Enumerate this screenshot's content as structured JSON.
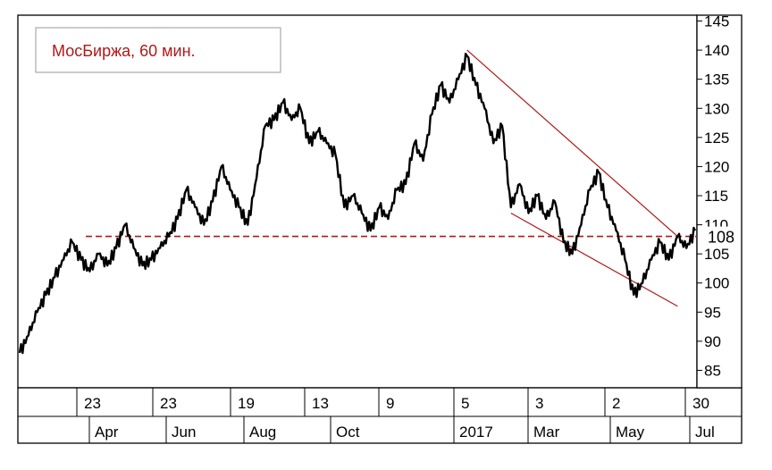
{
  "chart_data": {
    "type": "line",
    "title": "МосБиржа, 60 мин.",
    "y_ticks": [
      85,
      90,
      95,
      100,
      105,
      110,
      115,
      120,
      125,
      130,
      135,
      140,
      145
    ],
    "ylim": [
      82,
      146
    ],
    "x_tick_labels_top": [
      "23",
      "23",
      "19",
      "13",
      "9",
      "5",
      "3",
      "2",
      "30"
    ],
    "x_tick_labels_bottom": [
      "Apr",
      "Jun",
      "Aug",
      "Oct",
      "2017",
      "Mar",
      "May",
      "Jul"
    ],
    "series": [
      {
        "values": [
          {
            "x": 0,
            "y": 88
          },
          {
            "x": 2,
            "y": 91
          },
          {
            "x": 4,
            "y": 95
          },
          {
            "x": 6,
            "y": 98
          },
          {
            "x": 8,
            "y": 101
          },
          {
            "x": 10,
            "y": 104
          },
          {
            "x": 12,
            "y": 107
          },
          {
            "x": 14,
            "y": 104
          },
          {
            "x": 16,
            "y": 102
          },
          {
            "x": 18,
            "y": 105
          },
          {
            "x": 20,
            "y": 103
          },
          {
            "x": 22,
            "y": 106
          },
          {
            "x": 24,
            "y": 110
          },
          {
            "x": 26,
            "y": 106
          },
          {
            "x": 28,
            "y": 103
          },
          {
            "x": 30,
            "y": 104
          },
          {
            "x": 32,
            "y": 106
          },
          {
            "x": 34,
            "y": 108
          },
          {
            "x": 36,
            "y": 111
          },
          {
            "x": 38,
            "y": 116
          },
          {
            "x": 40,
            "y": 113
          },
          {
            "x": 42,
            "y": 110
          },
          {
            "x": 44,
            "y": 114
          },
          {
            "x": 46,
            "y": 120
          },
          {
            "x": 48,
            "y": 116
          },
          {
            "x": 50,
            "y": 113
          },
          {
            "x": 52,
            "y": 110
          },
          {
            "x": 54,
            "y": 118
          },
          {
            "x": 56,
            "y": 127
          },
          {
            "x": 58,
            "y": 128
          },
          {
            "x": 60,
            "y": 131
          },
          {
            "x": 62,
            "y": 128
          },
          {
            "x": 64,
            "y": 130
          },
          {
            "x": 66,
            "y": 124
          },
          {
            "x": 68,
            "y": 126
          },
          {
            "x": 70,
            "y": 124
          },
          {
            "x": 72,
            "y": 122
          },
          {
            "x": 74,
            "y": 113
          },
          {
            "x": 76,
            "y": 115
          },
          {
            "x": 78,
            "y": 112
          },
          {
            "x": 80,
            "y": 109
          },
          {
            "x": 82,
            "y": 113
          },
          {
            "x": 84,
            "y": 111
          },
          {
            "x": 86,
            "y": 116
          },
          {
            "x": 88,
            "y": 117
          },
          {
            "x": 90,
            "y": 124
          },
          {
            "x": 92,
            "y": 121
          },
          {
            "x": 94,
            "y": 129
          },
          {
            "x": 96,
            "y": 134
          },
          {
            "x": 98,
            "y": 131
          },
          {
            "x": 100,
            "y": 135
          },
          {
            "x": 102,
            "y": 139
          },
          {
            "x": 104,
            "y": 134
          },
          {
            "x": 106,
            "y": 130
          },
          {
            "x": 108,
            "y": 124
          },
          {
            "x": 110,
            "y": 127
          },
          {
            "x": 112,
            "y": 113
          },
          {
            "x": 114,
            "y": 117
          },
          {
            "x": 116,
            "y": 112
          },
          {
            "x": 118,
            "y": 115
          },
          {
            "x": 120,
            "y": 111
          },
          {
            "x": 122,
            "y": 114
          },
          {
            "x": 124,
            "y": 107
          },
          {
            "x": 126,
            "y": 105
          },
          {
            "x": 128,
            "y": 110
          },
          {
            "x": 130,
            "y": 116
          },
          {
            "x": 132,
            "y": 119
          },
          {
            "x": 134,
            "y": 113
          },
          {
            "x": 136,
            "y": 109
          },
          {
            "x": 138,
            "y": 104
          },
          {
            "x": 140,
            "y": 98
          },
          {
            "x": 142,
            "y": 100
          },
          {
            "x": 144,
            "y": 104
          },
          {
            "x": 146,
            "y": 107
          },
          {
            "x": 148,
            "y": 104
          },
          {
            "x": 150,
            "y": 108
          },
          {
            "x": 152,
            "y": 106
          },
          {
            "x": 154,
            "y": 109
          }
        ]
      }
    ],
    "annotations": {
      "horizontal_level": 108,
      "level_label": "108",
      "channel_upper": [
        {
          "x": 102,
          "y": 140
        },
        {
          "x": 150,
          "y": 108
        }
      ],
      "channel_lower": [
        {
          "x": 112,
          "y": 112
        },
        {
          "x": 150,
          "y": 96
        }
      ]
    },
    "x_domain": [
      0,
      154
    ],
    "grid": false,
    "colors": {
      "line": "#000000",
      "annotation": "#b01818",
      "title_text": "#b01818",
      "frame": "#000000"
    }
  }
}
